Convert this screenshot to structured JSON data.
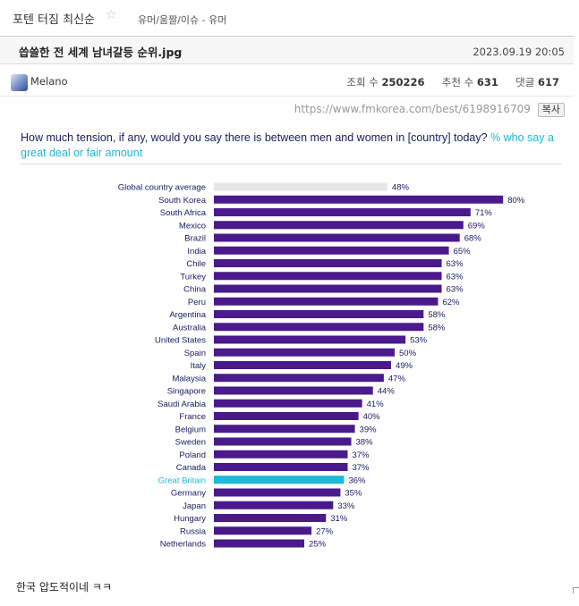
{
  "header": {
    "board_title": "포텐 터짐 최신순",
    "star_icon": "star-outline-icon",
    "breadcrumb": "유머/움짤/이슈 - 유머"
  },
  "post": {
    "title": "씁쓸한 전 세계 남녀갈등 순위.jpg",
    "date": "2023.09.19 20:05",
    "author": "Melano",
    "views_label": "조회 수",
    "views": "250226",
    "recommend_label": "추천 수",
    "recommend": "631",
    "comments_label": "댓글",
    "comments": "617",
    "source_url": "https://www.fmkorea.com/best/6198916709",
    "copy_label": "복사",
    "body_text": "한국 압도적이네 ㅋㅋ"
  },
  "chart_data": {
    "type": "bar",
    "orientation": "horizontal",
    "title": "How much tension, if any, would you say there is between men and women in [country] today?",
    "subtitle": "% who say a great deal or fair amount",
    "categories": [
      "Global country average",
      "South Korea",
      "South Africa",
      "Mexico",
      "Brazil",
      "India",
      "Chile",
      "Turkey",
      "China",
      "Peru",
      "Argentina",
      "Australia",
      "United States",
      "Spain",
      "Italy",
      "Malaysia",
      "Singapore",
      "Saudi Arabia",
      "France",
      "Belgium",
      "Sweden",
      "Poland",
      "Canada",
      "Great Britain",
      "Germany",
      "Japan",
      "Hungary",
      "Russia",
      "Netherlands"
    ],
    "values": [
      48,
      80,
      71,
      69,
      68,
      65,
      63,
      63,
      63,
      62,
      58,
      58,
      53,
      50,
      49,
      47,
      44,
      41,
      40,
      39,
      38,
      37,
      37,
      36,
      35,
      33,
      31,
      27,
      25
    ],
    "value_labels": [
      "48%",
      "80%",
      "71%",
      "69%",
      "68%",
      "65%",
      "63%",
      "63%",
      "63%",
      "62%",
      "58%",
      "58%",
      "53%",
      "50%",
      "49%",
      "47%",
      "44%",
      "41%",
      "40%",
      "39%",
      "38%",
      "37%",
      "37%",
      "36%",
      "35%",
      "33%",
      "31%",
      "27%",
      "25%"
    ],
    "highlight": {
      "Global country average": "#e6e6e6",
      "Great Britain": "#1fb8d6"
    },
    "bar_color": "#4a1a8c",
    "xlim": [
      0,
      100
    ],
    "grid": false,
    "legend": "none"
  }
}
